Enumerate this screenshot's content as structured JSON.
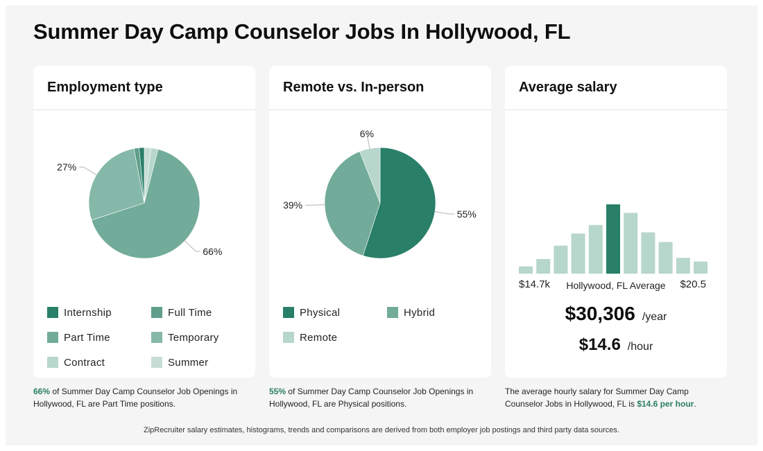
{
  "title": "Summer Day Camp Counselor Jobs In Hollywood, FL",
  "colors": {
    "dark": "#297f68",
    "medium": "#5f9e8b",
    "mid": "#72ab99",
    "light": "#85b8a8",
    "pale": "#b7d6cc",
    "paler": "#c6ddd5",
    "highlight": "#2a7d64"
  },
  "chart_data": [
    {
      "type": "pie",
      "title": "Employment type",
      "labels": [
        "Internship",
        "Full Time",
        "Part Time",
        "Temporary",
        "Contract",
        "Summer"
      ],
      "values": [
        1.5,
        1.5,
        66,
        27,
        2,
        2
      ],
      "label_texts": [
        "66%",
        "27%"
      ],
      "colors": [
        "#297f68",
        "#5f9e8b",
        "#72ab99",
        "#85b8a8",
        "#b7d6cc",
        "#c6ddd5"
      ]
    },
    {
      "type": "pie",
      "title": "Remote vs. In-person",
      "labels": [
        "Physical",
        "Hybrid",
        "Remote"
      ],
      "values": [
        55,
        39,
        6
      ],
      "label_texts": [
        "55%",
        "39%",
        "6%"
      ],
      "colors": [
        "#297f68",
        "#72ab99",
        "#b7d6cc"
      ]
    },
    {
      "type": "bar",
      "title": "Average salary",
      "values": [
        3,
        6,
        11.5,
        16.5,
        20,
        28.5,
        25,
        17,
        13,
        6.5,
        5
      ],
      "highlight_index": 5,
      "min_label": "$14.7k",
      "max_label": "$20.5",
      "center_label": "Hollywood, FL Average"
    }
  ],
  "employment": {
    "title": "Employment type",
    "legend": [
      "Internship",
      "Full Time",
      "Part Time",
      "Temporary",
      "Contract",
      "Summer"
    ],
    "footnote": {
      "pct": "66%",
      "text": " of Summer Day Camp Counselor Job Openings in Hollywood, FL are Part Time positions."
    }
  },
  "remote": {
    "title": "Remote vs. In-person",
    "legend": [
      "Physical",
      "Hybrid",
      "Remote"
    ],
    "footnote": {
      "pct": "55%",
      "text": " of Summer Day Camp Counselor Job Openings in Hollywood, FL are Physical positions."
    }
  },
  "salary": {
    "title": "Average salary",
    "min_label": "$14.7k",
    "center_label": "Hollywood, FL Average",
    "max_label": "$20.5",
    "yearly": "$30,306",
    "yearly_unit": "/year",
    "hourly": "$14.6",
    "hourly_unit": "/hour",
    "footnote": {
      "prefix": "The average hourly salary for Summer Day Camp Counselor Jobs in Hollywood, FL is ",
      "amount": "$14.6 per hour",
      "suffix": "."
    }
  },
  "bottom_note": "ZipRecruiter salary estimates, histograms, trends and comparisons are derived from both employer job postings and third party data sources."
}
